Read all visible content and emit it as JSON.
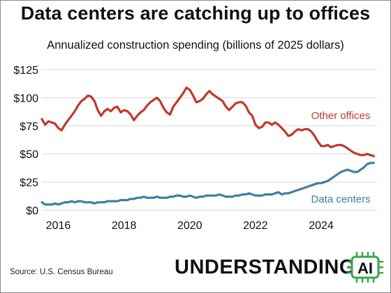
{
  "chart_data": {
    "type": "line",
    "title": "Data centers are catching up to offices",
    "subtitle": "Annualized construction spending (billions of 2025 dollars)",
    "xlabel": "",
    "ylabel": "",
    "x_ticks": [
      "2016",
      "2018",
      "2020",
      "2022",
      "2024"
    ],
    "y_ticks": [
      "$0",
      "$25",
      "$50",
      "$75",
      "$100",
      "$125"
    ],
    "xlim": [
      2015.5,
      2025.7
    ],
    "ylim": [
      0,
      125
    ],
    "grid": "horizontal",
    "series": [
      {
        "name": "Other offices",
        "color": "#c0392b",
        "x": [
          2015.5,
          2015.6,
          2015.7,
          2015.8,
          2015.9,
          2016.0,
          2016.1,
          2016.2,
          2016.3,
          2016.4,
          2016.5,
          2016.6,
          2016.7,
          2016.8,
          2016.9,
          2017.0,
          2017.1,
          2017.2,
          2017.3,
          2017.4,
          2017.5,
          2017.6,
          2017.7,
          2017.8,
          2017.9,
          2018.0,
          2018.1,
          2018.2,
          2018.3,
          2018.4,
          2018.5,
          2018.6,
          2018.7,
          2018.8,
          2018.9,
          2019.0,
          2019.1,
          2019.2,
          2019.3,
          2019.4,
          2019.5,
          2019.6,
          2019.7,
          2019.8,
          2019.9,
          2020.0,
          2020.1,
          2020.2,
          2020.3,
          2020.4,
          2020.5,
          2020.6,
          2020.7,
          2020.8,
          2020.9,
          2021.0,
          2021.1,
          2021.2,
          2021.3,
          2021.4,
          2021.5,
          2021.6,
          2021.7,
          2021.8,
          2021.9,
          2022.0,
          2022.1,
          2022.2,
          2022.3,
          2022.4,
          2022.5,
          2022.6,
          2022.7,
          2022.8,
          2022.9,
          2023.0,
          2023.1,
          2023.2,
          2023.3,
          2023.4,
          2023.5,
          2023.6,
          2023.7,
          2023.8,
          2023.9,
          2024.0,
          2024.1,
          2024.2,
          2024.3,
          2024.4,
          2024.5,
          2024.6,
          2024.7,
          2024.8,
          2024.9,
          2025.0,
          2025.1,
          2025.2,
          2025.3,
          2025.4,
          2025.5,
          2025.6
        ],
        "values": [
          81,
          76,
          79,
          78,
          77,
          73,
          71,
          76,
          80,
          84,
          88,
          93,
          97,
          99,
          102,
          101,
          97,
          89,
          84,
          88,
          90,
          88,
          91,
          92,
          87,
          89,
          88,
          85,
          80,
          84,
          87,
          89,
          93,
          96,
          98,
          100,
          97,
          91,
          87,
          85,
          92,
          96,
          100,
          104,
          109,
          107,
          102,
          96,
          97,
          99,
          103,
          106,
          103,
          101,
          99,
          97,
          92,
          89,
          92,
          95,
          96,
          96,
          93,
          87,
          84,
          76,
          73,
          74,
          78,
          78,
          76,
          78,
          76,
          73,
          70,
          66,
          67,
          70,
          72,
          71,
          72,
          72,
          70,
          66,
          61,
          57,
          57,
          58,
          56,
          57,
          58,
          58,
          57,
          55,
          53,
          51,
          50,
          49,
          49,
          50,
          49,
          48
        ]
      },
      {
        "name": "Data centers",
        "color": "#3f7fa0",
        "x": [
          2015.5,
          2015.6,
          2015.7,
          2015.8,
          2015.9,
          2016.0,
          2016.1,
          2016.2,
          2016.3,
          2016.4,
          2016.5,
          2016.6,
          2016.7,
          2016.8,
          2016.9,
          2017.0,
          2017.1,
          2017.2,
          2017.3,
          2017.4,
          2017.5,
          2017.6,
          2017.7,
          2017.8,
          2017.9,
          2018.0,
          2018.1,
          2018.2,
          2018.3,
          2018.4,
          2018.5,
          2018.6,
          2018.7,
          2018.8,
          2018.9,
          2019.0,
          2019.1,
          2019.2,
          2019.3,
          2019.4,
          2019.5,
          2019.6,
          2019.7,
          2019.8,
          2019.9,
          2020.0,
          2020.1,
          2020.2,
          2020.3,
          2020.4,
          2020.5,
          2020.6,
          2020.7,
          2020.8,
          2020.9,
          2021.0,
          2021.1,
          2021.2,
          2021.3,
          2021.4,
          2021.5,
          2021.6,
          2021.7,
          2021.8,
          2021.9,
          2022.0,
          2022.1,
          2022.2,
          2022.3,
          2022.4,
          2022.5,
          2022.6,
          2022.7,
          2022.8,
          2022.9,
          2023.0,
          2023.1,
          2023.2,
          2023.3,
          2023.4,
          2023.5,
          2023.6,
          2023.7,
          2023.8,
          2023.9,
          2024.0,
          2024.1,
          2024.2,
          2024.3,
          2024.4,
          2024.5,
          2024.6,
          2024.7,
          2024.8,
          2024.9,
          2025.0,
          2025.1,
          2025.2,
          2025.3,
          2025.4,
          2025.5,
          2025.6
        ],
        "values": [
          7,
          5,
          5,
          5,
          6,
          5,
          6,
          7,
          7,
          8,
          7,
          8,
          8,
          7,
          7,
          7,
          6,
          7,
          7,
          7,
          8,
          8,
          8,
          8,
          9,
          9,
          9,
          10,
          10,
          11,
          11,
          12,
          11,
          11,
          11,
          12,
          11,
          11,
          11,
          12,
          12,
          13,
          13,
          12,
          12,
          13,
          12,
          11,
          12,
          12,
          13,
          13,
          13,
          13,
          14,
          13,
          12,
          12,
          12,
          13,
          13,
          14,
          14,
          15,
          14,
          13,
          13,
          13,
          14,
          14,
          14,
          15,
          16,
          14,
          15,
          15,
          16,
          17,
          18,
          19,
          20,
          21,
          22,
          23,
          24,
          24,
          25,
          26,
          28,
          30,
          32,
          34,
          35,
          36,
          35,
          34,
          34,
          36,
          38,
          41,
          42,
          42
        ]
      }
    ]
  },
  "source": "Source: U.S. Census Bureau",
  "brand": {
    "text": "UNDERSTANDING",
    "badge": "AI",
    "accent": "#3aa64b"
  }
}
